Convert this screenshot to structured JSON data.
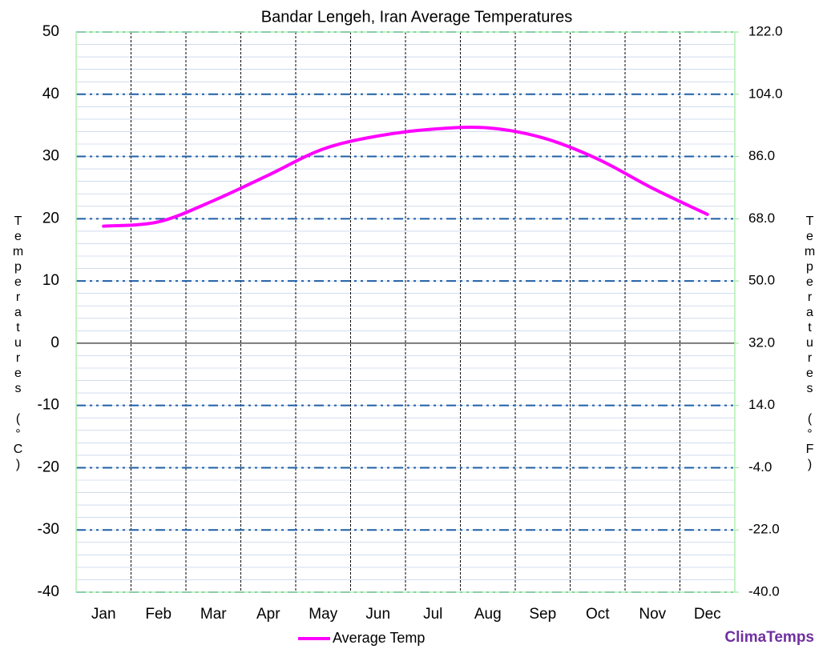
{
  "chart_data": {
    "type": "line",
    "title": "Bandar Lengeh, Iran Average Temperatures",
    "categories": [
      "Jan",
      "Feb",
      "Mar",
      "Apr",
      "May",
      "Jun",
      "Jul",
      "Aug",
      "Sep",
      "Oct",
      "Nov",
      "Dec"
    ],
    "series": [
      {
        "name": "Average Temp",
        "color": "#ff00ff",
        "values": [
          18.8,
          19.5,
          22.9,
          27.0,
          31.2,
          33.3,
          34.4,
          34.6,
          33.0,
          29.6,
          24.9,
          20.7
        ]
      }
    ],
    "ylim": [
      -40,
      50
    ],
    "yticks": [
      -40,
      -30,
      -20,
      -10,
      0,
      10,
      20,
      30,
      40,
      50
    ],
    "y2lim": [
      -40,
      122
    ],
    "y2ticks": [
      {
        "value": -40,
        "label": "-40.0"
      },
      {
        "value": -22,
        "label": "-22.0"
      },
      {
        "value": -4,
        "label": "-4.0"
      },
      {
        "value": 14,
        "label": "14.0"
      },
      {
        "value": 32,
        "label": "32.0"
      },
      {
        "value": 50,
        "label": "50.0"
      },
      {
        "value": 68,
        "label": "68.0"
      },
      {
        "value": 86,
        "label": "86.0"
      },
      {
        "value": 104,
        "label": "104.0"
      },
      {
        "value": 122,
        "label": "122.0"
      }
    ],
    "ylabel": "Temperatures (°C)",
    "y2label": "Temperatures (°F)",
    "grid": true,
    "legend": "bottom",
    "brand": "ClimaTemps"
  }
}
